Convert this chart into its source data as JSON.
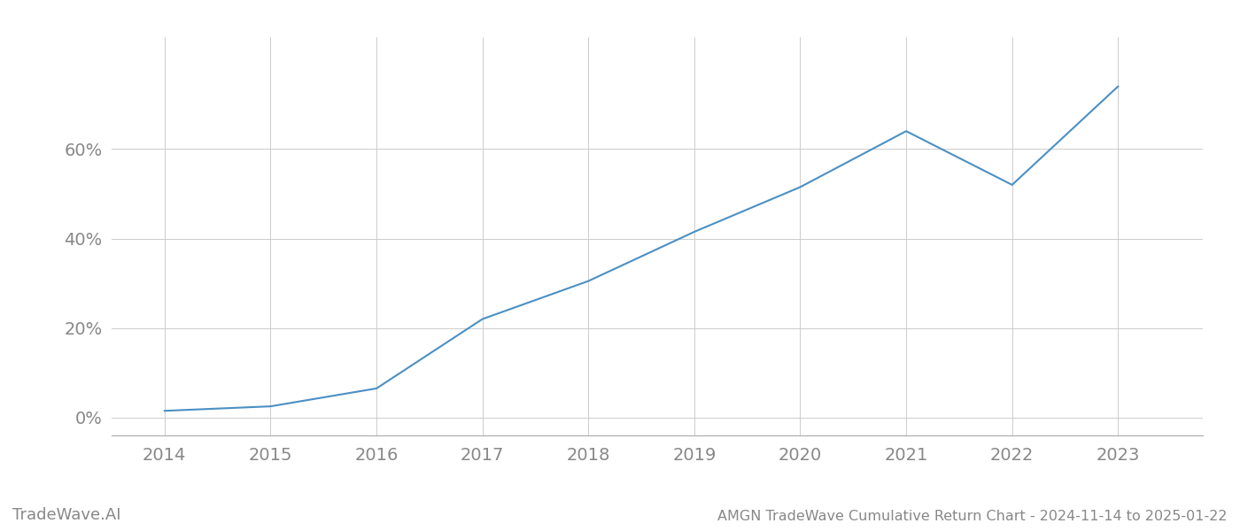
{
  "x_years": [
    2014,
    2015,
    2016,
    2017,
    2018,
    2019,
    2020,
    2021,
    2022,
    2023
  ],
  "y_values": [
    1.5,
    2.5,
    6.5,
    22.0,
    30.5,
    41.5,
    51.5,
    64.0,
    52.0,
    74.0
  ],
  "line_color": "#4a90c4",
  "line_width": 1.5,
  "background_color": "#ffffff",
  "grid_color": "#cccccc",
  "tick_color": "#888888",
  "title_text": "AMGN TradeWave Cumulative Return Chart - 2024-11-14 to 2025-01-22",
  "watermark_text": "TradeWave.AI",
  "xlim": [
    2013.5,
    2023.8
  ],
  "ylim": [
    -4,
    85
  ],
  "yticks": [
    0,
    20,
    40,
    60
  ],
  "xticks": [
    2014,
    2015,
    2016,
    2017,
    2018,
    2019,
    2020,
    2021,
    2022,
    2023
  ],
  "tick_fontsize": 14,
  "title_fontsize": 11.5,
  "watermark_fontsize": 13
}
